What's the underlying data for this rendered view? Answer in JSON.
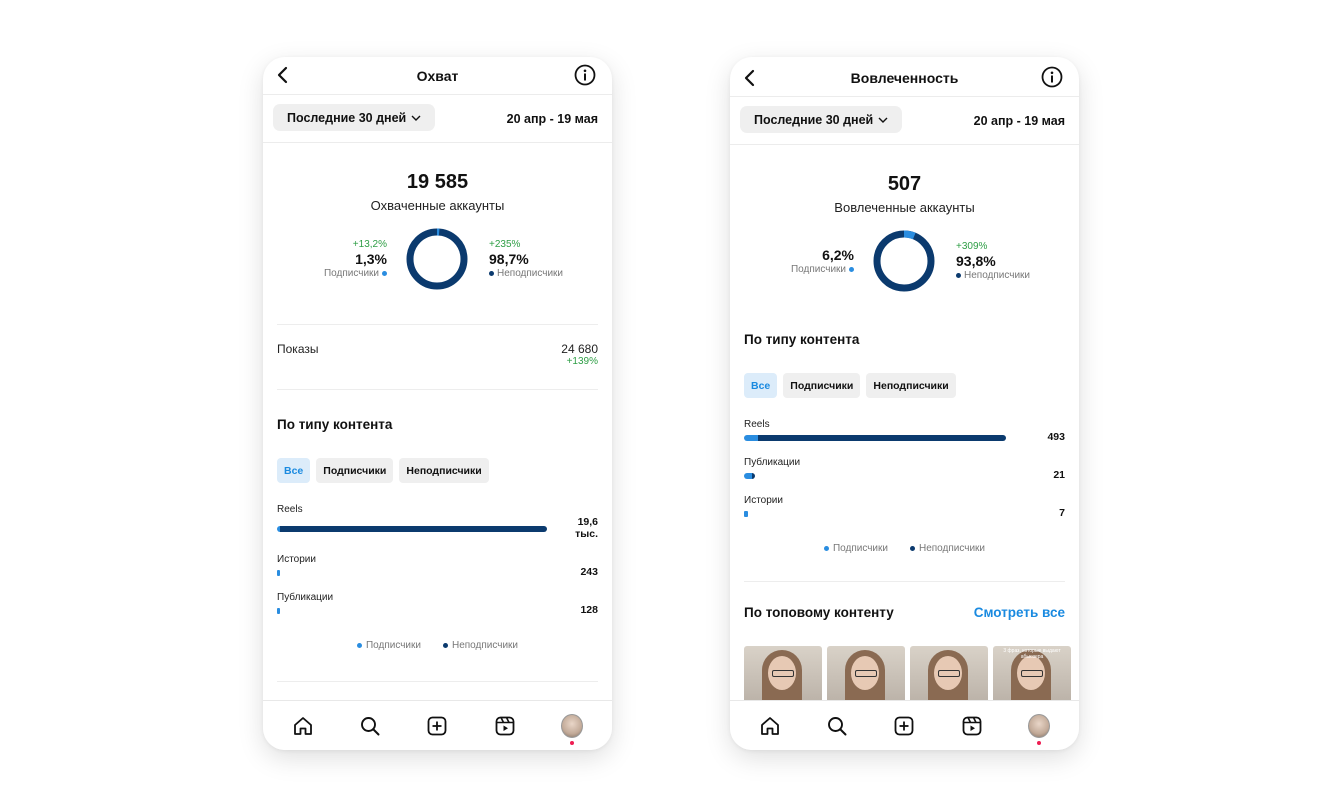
{
  "left": {
    "header": {
      "title": "Охват"
    },
    "period": {
      "label": "Последние 30 дней",
      "range": "20 апр - 19 мая"
    },
    "summary": {
      "value": "19 585",
      "label": "Охваченные аккаунты",
      "followers": {
        "delta": "+13,2%",
        "pct": "1,3%",
        "label": "Подписчики",
        "share": 0.013
      },
      "non_followers": {
        "delta": "+235%",
        "pct": "98,7%",
        "label": "Неподписчики",
        "share": 0.987
      }
    },
    "impressions": {
      "label": "Показы",
      "value": "24 680",
      "delta": "+139%"
    },
    "content_type": {
      "title": "По типу контента",
      "filters": [
        "Все",
        "Подписчики",
        "Неподписчики"
      ],
      "bars": [
        {
          "label": "Reels",
          "value_line1": "19,6",
          "value_line2": "тыс.",
          "total": 19600,
          "sub": 250
        },
        {
          "label": "Истории",
          "value_line1": "243",
          "total": 243,
          "sub": 243
        },
        {
          "label": "Публикации",
          "value_line1": "128",
          "total": 128,
          "sub": 128
        }
      ],
      "legend": {
        "followers": "Подписчики",
        "non_followers": "Неподписчики"
      }
    }
  },
  "right": {
    "header": {
      "title": "Вовлеченность"
    },
    "period": {
      "label": "Последние 30 дней",
      "range": "20 апр - 19 мая"
    },
    "summary": {
      "value": "507",
      "label": "Вовлеченные аккаунты",
      "followers": {
        "pct": "6,2%",
        "label": "Подписчики",
        "share": 0.062
      },
      "non_followers": {
        "delta": "+309%",
        "pct": "93,8%",
        "label": "Неподписчики",
        "share": 0.938
      }
    },
    "content_type": {
      "title": "По типу контента",
      "filters": [
        "Все",
        "Подписчики",
        "Неподписчики"
      ],
      "bars": [
        {
          "label": "Reels",
          "value_line1": "493",
          "total": 493,
          "sub": 26
        },
        {
          "label": "Публикации",
          "value_line1": "21",
          "total": 21,
          "sub": 15
        },
        {
          "label": "Истории",
          "value_line1": "7",
          "total": 7,
          "sub": 7
        }
      ],
      "legend": {
        "followers": "Подписчики",
        "non_followers": "Неподписчики"
      }
    },
    "top_content": {
      "title": "По топовому контенту",
      "see_all": "Смотреть все",
      "thumb4_caption": "3 фраз, которые выдают абьюзера"
    }
  },
  "colors": {
    "followers": "#2a8de0",
    "non_followers": "#0b3a6e",
    "positive": "#2e9e45",
    "link": "#1a8ae0"
  },
  "nav_icons": [
    "home-icon",
    "search-icon",
    "create-icon",
    "reels-icon",
    "profile-avatar"
  ]
}
